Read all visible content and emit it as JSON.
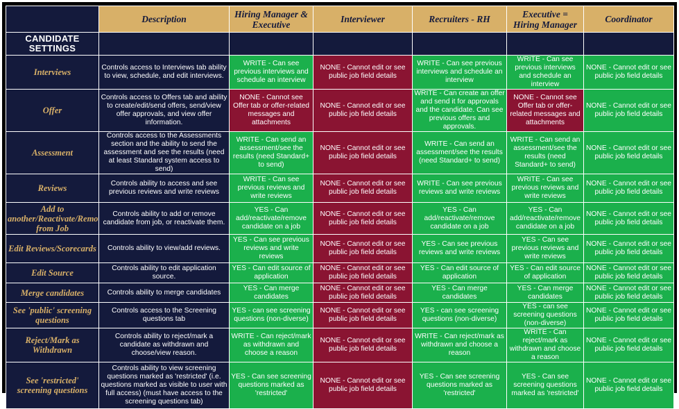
{
  "colors": {
    "navy": "#141a3c",
    "gold": "#d8b068",
    "green": "#1bb04c",
    "maroon": "#8a1432"
  },
  "header": {
    "description": "Description",
    "hiring_manager": "Hiring Manager & Executive",
    "interviewer": "Interviewer",
    "recruiters": "Recruiters - RH",
    "executive": "Executive = Hiring Manager",
    "coordinator": "Coordinator"
  },
  "section_title": "CANDIDATE SETTINGS",
  "rows": [
    {
      "label": "Interviews",
      "desc": "Controls access to Interviews tab ability to view, schedule, and edit interviews.",
      "hm": "WRITE - Can see previous interviews and schedule an interview",
      "interviewer": "NONE - Cannot edit or see public job field details",
      "recruiter": "WRITE - Can see previous interviews and schedule an interview",
      "executive": "WRITE - Can see previous interviews and schedule an interview",
      "coordinator": "NONE - Cannot edit or see public job field details"
    },
    {
      "label": "Offer",
      "desc": "Controls access to Offers tab and ability to create/edit/send offers, send/view offer approvals, and view offer information.",
      "hm": "NONE - Cannot see Offer tab or offer-related messages and attachments",
      "interviewer": "NONE - Cannot edit or see public job field details",
      "recruiter": "WRITE - Can create an offer and send it for approvals and the candidate. Can see previous offers and approvals.",
      "executive": "NONE - Cannot see Offer tab or offer-related messages and attachments",
      "coordinator": "NONE - Cannot edit or see public job field details"
    },
    {
      "label": "Assessment",
      "desc": "Controls access to the Assessments section and the ability to send the assessment and see the results (need at least Standard system access to send)",
      "hm": "WRITE - Can send an assessment/see the results (need Standard+ to send)",
      "interviewer": "NONE - Cannot edit or see public job field details",
      "recruiter": "WRITE - Can send an assessment/see the results (need Standard+ to send)",
      "executive": "WRITE - Can send an assessment/see the results (need Standard+ to send)",
      "coordinator": "NONE - Cannot edit or see public job field details"
    },
    {
      "label": "Reviews",
      "desc": "Controls ability to access and see previous reviews and write reviews",
      "hm": "WRITE - Can see previous reviews and write reviews",
      "interviewer": "NONE - Cannot edit or see public job field details",
      "recruiter": "WRITE - Can see previous reviews and write reviews",
      "executive": "WRITE - Can see previous reviews and write reviews",
      "coordinator": "NONE - Cannot edit or see public job field details"
    },
    {
      "label": "Add to another/Reactivate/Remove from Job",
      "desc": "Controls ability to add or remove candidate from job, or reactivate them.",
      "hm": "YES - Can add/reactivate/remove candidate on a job",
      "interviewer": "NONE - Cannot edit or see public job field details",
      "recruiter": "YES - Can add/reactivate/remove candidate on a job",
      "executive": "YES - Can add/reactivate/remove candidate on a job",
      "coordinator": "NONE - Cannot edit or see public job field details"
    },
    {
      "label": "Edit Reviews/Scorecards",
      "desc": "Controls ability to view/add reviews.",
      "hm": "YES - Can see previous reviews and write reviews",
      "interviewer": "NONE - Cannot edit or see public job field details",
      "recruiter": "YES - Can see previous reviews and write reviews",
      "executive": "YES - Can see previous reviews and write reviews",
      "coordinator": "NONE - Cannot edit or see public job field details"
    },
    {
      "label": "Edit Source",
      "desc": "Controls ability to edit application source.",
      "hm": "YES - Can edit source of application",
      "interviewer": "NONE - Cannot edit or see public job field details",
      "recruiter": "YES - Can edit source of application",
      "executive": "YES - Can edit source of application",
      "coordinator": "NONE - Cannot edit or see public job field details"
    },
    {
      "label": "Merge candidates",
      "desc": "Controls ability to merge candidates",
      "hm": "YES - Can merge candidates",
      "interviewer": "NONE - Cannot edit or see public job field details",
      "recruiter": "YES - Can merge candidates",
      "executive": "YES - Can merge candidates",
      "coordinator": "NONE - Cannot edit or see public job field details"
    },
    {
      "label": "See 'public' screening questions",
      "desc": "Controls access to the Screening questions tab",
      "hm": "YES - can see screening questions (non-diverse)",
      "interviewer": "NONE - Cannot edit or see public job field details",
      "recruiter": "YES - can see screening questions (non-diverse)",
      "executive": "YES - can see screening questions (non-diverse)",
      "coordinator": "NONE - Cannot edit or see public job field details"
    },
    {
      "label": "Reject/Mark as Withdrawn",
      "desc": "Controls ability to reject/mark a candidate as withdrawn and choose/view reason.",
      "hm": "WRITE - Can reject/mark as withdrawn and choose a reason",
      "interviewer": "NONE - Cannot edit or see public job field details",
      "recruiter": "WRITE - Can reject/mark as withdrawn and choose a reason",
      "executive": "WRITE - Can reject/mark as withdrawn and choose a reason",
      "coordinator": "NONE - Cannot edit or see public job field details"
    },
    {
      "label": "See 'restricted' screening questions",
      "desc": "Controls ability to view screening questions marked as 'restricted' (i.e. questions marked as visible to user with full access) (must have access to the screening questions tab)",
      "hm": "YES - Can see screening questions marked as 'restricted'",
      "interviewer": "NONE - Cannot edit or see public job field details",
      "recruiter": "YES - Can see screening questions marked as 'restricted'",
      "executive": "YES - Can see screening questions marked as 'restricted'",
      "coordinator": "NONE - Cannot edit or see public job field details"
    }
  ]
}
